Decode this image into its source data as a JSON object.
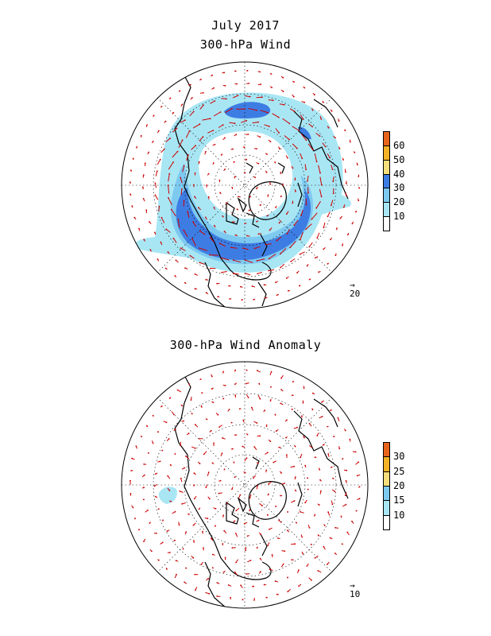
{
  "title": "July 2017",
  "panels": [
    {
      "id": "wind",
      "title": "300-hPa Wind",
      "colorbar": {
        "ticks": [
          "10",
          "20",
          "30",
          "40",
          "50",
          "60"
        ],
        "colors": [
          "#ffffff",
          "#a8e6f4",
          "#7ec9f0",
          "#3d7de3",
          "#f6de7a",
          "#f5b227",
          "#e8641c"
        ]
      },
      "reference_vector": "20"
    },
    {
      "id": "anomaly",
      "title": "300-hPa Wind Anomaly",
      "colorbar": {
        "ticks": [
          "10",
          "15",
          "20",
          "25",
          "30"
        ],
        "colors": [
          "#ffffff",
          "#a8e6f4",
          "#7ec9f0",
          "#f6de7a",
          "#f5b227",
          "#e8641c"
        ]
      },
      "reference_vector": "10"
    }
  ],
  "colors": {
    "vector": "#cc0000",
    "coastline": "#000000",
    "grid": "#000000"
  }
}
